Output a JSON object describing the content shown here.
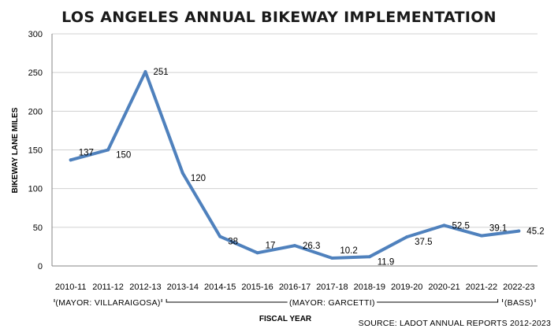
{
  "chart_data": {
    "type": "line",
    "title": "LOS ANGELES ANNUAL BIKEWAY IMPLEMENTATION",
    "xlabel": "FISCAL YEAR",
    "ylabel": "BIKEWAY LANE MILES",
    "ylim": [
      0,
      300
    ],
    "yticks": [
      "0",
      "50",
      "100",
      "150",
      "200",
      "250",
      "300"
    ],
    "grid": true,
    "categories": [
      "2010-11",
      "2011-12",
      "2012-13",
      "2013-14",
      "2014-15",
      "2015-16",
      "2016-17",
      "2017-18",
      "2018-19",
      "2019-20",
      "2020-21",
      "2021-22",
      "2022-23"
    ],
    "series": [
      {
        "values": [
          137,
          150,
          251,
          120,
          38,
          17,
          26.3,
          10.2,
          11.9,
          37.5,
          52.5,
          39.1,
          45.2
        ],
        "labels": [
          "137",
          "150",
          "251",
          "120",
          "38",
          "17",
          "26.3",
          "10.2",
          "11.9",
          "37.5",
          "52.5",
          "39.1",
          "45.2"
        ],
        "color": "#4f81bd"
      }
    ],
    "eras": [
      {
        "label": "(MAYOR: VILLARAIGOSA)",
        "start": 0,
        "end": 2
      },
      {
        "label": "(MAYOR: GARCETTI)",
        "start": 3,
        "end": 11
      },
      {
        "label": "(BASS)",
        "start": 12,
        "end": 12
      }
    ],
    "source": "SOURCE: LADOT ANNUAL REPORTS 2012-2023"
  }
}
